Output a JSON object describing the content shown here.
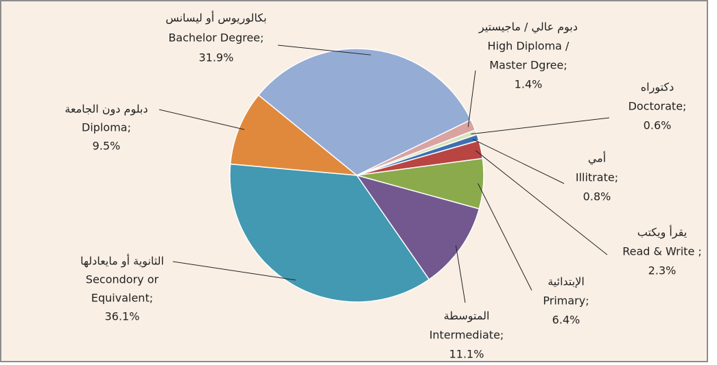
{
  "chart_data": {
    "type": "pie",
    "categories": [
      [
        "دبوم عالي / ماجيستير",
        "High Diploma /",
        "Master Dgree;"
      ],
      [
        "دكتوراه",
        "Doctorate;"
      ],
      [
        "أمي",
        "Illitrate;"
      ],
      [
        "يقرأ ويكتب",
        "Read & Write ;"
      ],
      [
        "الإبتدائية",
        "Primary;"
      ],
      [
        "المتوسطة",
        "Intermediate;"
      ],
      [
        "الثانوية أو مايعادلها",
        "Secondory or",
        "Equivalent;"
      ],
      [
        "دبلوم دون الجامعة",
        "Diploma;"
      ],
      [
        "بكالوريوس أو ليسانس",
        "Bachelor Degree;"
      ]
    ],
    "values": [
      1.4,
      0.6,
      0.8,
      2.3,
      6.4,
      11.1,
      36.1,
      9.5,
      31.9
    ],
    "value_labels": [
      "1.4%",
      "0.6%",
      "0.8%",
      "2.3%",
      "6.4%",
      "11.1%",
      "36.1%",
      "9.5%",
      "31.9%"
    ],
    "colors": [
      "#d9a3a2",
      "#d8e4bc",
      "#3f6fb1",
      "#b94542",
      "#8aaa4c",
      "#73588f",
      "#4299b1",
      "#e0893c",
      "#95acd5"
    ]
  }
}
